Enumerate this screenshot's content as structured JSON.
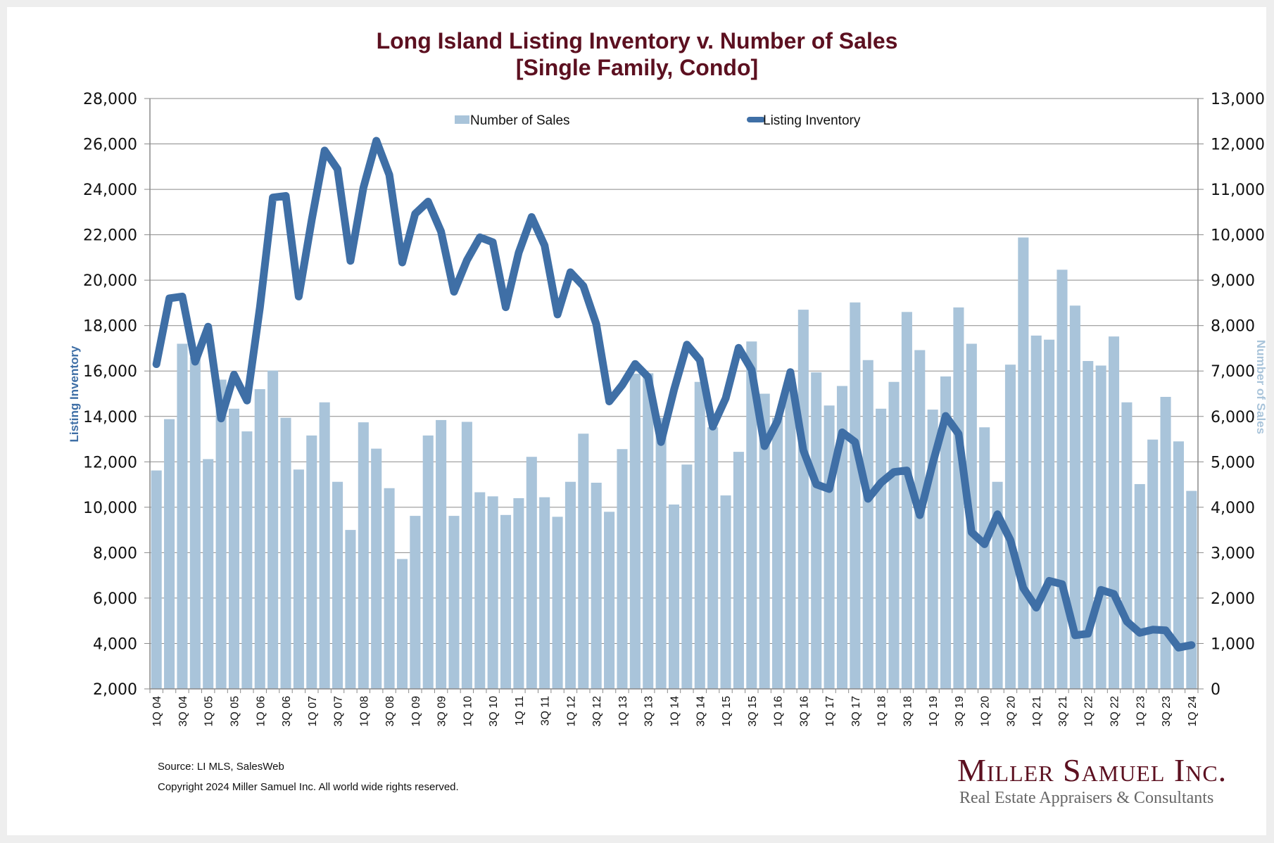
{
  "title_line1": "Long Island Listing Inventory v. Number of Sales",
  "title_line2": "[Single Family, Condo]",
  "source": "Source: LI MLS, SalesWeb",
  "copyright": "Copyright 2024 Miller Samuel Inc.  All world wide rights reserved.",
  "logo": {
    "name": "Miller Samuel Inc.",
    "tagline": "Real Estate Appraisers & Consultants",
    "color": "#5c1020"
  },
  "colors": {
    "sales_bar": "#a9c4da",
    "inventory_line": "#3f6fa6",
    "title": "#5c1020"
  },
  "chart_data": {
    "type": "bar",
    "title": "Long Island Listing Inventory v. Number of Sales [Single Family, Condo]",
    "xlabel": "",
    "ylabel_left": "Listing Inventory",
    "ylabel_right": "Number of Sales",
    "ylim_left": [
      2000,
      28000
    ],
    "ylim_right": [
      0,
      13000
    ],
    "yticks_left": [
      "2,000",
      "4,000",
      "6,000",
      "8,000",
      "10,000",
      "12,000",
      "14,000",
      "16,000",
      "18,000",
      "20,000",
      "22,000",
      "24,000",
      "26,000",
      "28,000"
    ],
    "yticks_right": [
      "0",
      "1,000",
      "2,000",
      "3,000",
      "4,000",
      "5,000",
      "6,000",
      "7,000",
      "8,000",
      "9,000",
      "10,000",
      "11,000",
      "12,000",
      "13,000"
    ],
    "grid": true,
    "legend": [
      "Number of Sales",
      "Listing Inventory"
    ],
    "legend_position": "top-center",
    "categories": [
      "1Q 04",
      "2Q 04",
      "3Q 04",
      "4Q 04",
      "1Q 05",
      "2Q 05",
      "3Q 05",
      "4Q 05",
      "1Q 06",
      "2Q 06",
      "3Q 06",
      "4Q 06",
      "1Q 07",
      "2Q 07",
      "3Q 07",
      "4Q 07",
      "1Q 08",
      "2Q 08",
      "3Q 08",
      "4Q 08",
      "1Q 09",
      "2Q 09",
      "3Q 09",
      "4Q 09",
      "1Q 10",
      "2Q 10",
      "3Q 10",
      "4Q 10",
      "1Q 11",
      "2Q 11",
      "3Q 11",
      "4Q 11",
      "1Q 12",
      "2Q 12",
      "3Q 12",
      "4Q 12",
      "1Q 13",
      "2Q 13",
      "3Q 13",
      "4Q 13",
      "1Q 14",
      "2Q 14",
      "3Q 14",
      "4Q 14",
      "1Q 15",
      "2Q 15",
      "3Q 15",
      "4Q 15",
      "1Q 16",
      "2Q 16",
      "3Q 16",
      "4Q 16",
      "1Q 17",
      "2Q 17",
      "3Q 17",
      "4Q 17",
      "1Q 18",
      "2Q 18",
      "3Q 18",
      "4Q 18",
      "1Q 19",
      "2Q 19",
      "3Q 19",
      "4Q 19",
      "1Q 20",
      "2Q 20",
      "3Q 20",
      "4Q 20",
      "1Q 21",
      "2Q 21",
      "3Q 21",
      "4Q 21",
      "1Q 22",
      "2Q 22",
      "3Q 22",
      "4Q 22",
      "1Q 23",
      "2Q 23",
      "3Q 23",
      "4Q 23",
      "1Q 24"
    ],
    "series": [
      {
        "name": "Number of Sales",
        "type": "bar",
        "axis": "right",
        "values": [
          4810,
          5940,
          7600,
          7300,
          5060,
          6810,
          6170,
          5670,
          6600,
          7010,
          5970,
          4830,
          5580,
          6310,
          4560,
          3500,
          5870,
          5290,
          4420,
          2860,
          3810,
          5580,
          5920,
          3810,
          5880,
          4330,
          4240,
          3830,
          4200,
          5110,
          4220,
          3790,
          4560,
          5620,
          4540,
          3900,
          5280,
          6940,
          6950,
          5970,
          4060,
          4940,
          6760,
          5760,
          4260,
          5220,
          7650,
          6500,
          5970,
          6830,
          8350,
          6970,
          6240,
          6670,
          8510,
          7240,
          6170,
          6760,
          8300,
          7460,
          6150,
          6880,
          8400,
          7600,
          5760,
          4560,
          7140,
          9940,
          7780,
          7690,
          9230,
          8440,
          7220,
          7120,
          7760,
          6310,
          4510,
          5490,
          6430,
          5450,
          4360
        ]
      },
      {
        "name": "Listing Inventory",
        "type": "line",
        "axis": "left",
        "values": [
          16300,
          19200,
          19280,
          16410,
          17950,
          13910,
          15840,
          14700,
          18810,
          23640,
          23710,
          19280,
          22640,
          25710,
          24890,
          20850,
          24070,
          26140,
          24640,
          20780,
          22920,
          23460,
          22140,
          19490,
          20880,
          21890,
          21670,
          18810,
          21210,
          22780,
          21530,
          18490,
          20350,
          19740,
          18060,
          14660,
          15380,
          16310,
          15730,
          12870,
          15160,
          17160,
          16480,
          13550,
          14800,
          17020,
          16060,
          12690,
          13800,
          15950,
          12510,
          11010,
          10800,
          13300,
          12870,
          10370,
          11080,
          11550,
          11620,
          9650,
          11940,
          14020,
          13230,
          8900,
          8370,
          9690,
          8550,
          6440,
          5580,
          6760,
          6610,
          4360,
          4430,
          6360,
          6180,
          4970,
          4470,
          4610,
          4580,
          3820,
          3930
        ]
      }
    ],
    "x_tick_labels_shown": [
      "1Q 04",
      "3Q 04",
      "1Q 05",
      "3Q 05",
      "1Q 06",
      "3Q 06",
      "1Q 07",
      "3Q 07",
      "1Q 08",
      "3Q 08",
      "1Q 09",
      "3Q 09",
      "1Q 10",
      "3Q 10",
      "1Q 11",
      "3Q 11",
      "1Q 12",
      "3Q 12",
      "1Q 13",
      "3Q 13",
      "1Q 14",
      "3Q 14",
      "1Q 15",
      "3Q 15",
      "1Q 16",
      "3Q 16",
      "1Q 17",
      "3Q 17",
      "1Q 18",
      "3Q 18",
      "1Q 19",
      "3Q 19",
      "1Q 20",
      "3Q 20",
      "1Q 21",
      "3Q 21",
      "1Q 22",
      "3Q 22",
      "1Q 23",
      "3Q 23",
      "1Q 24"
    ]
  }
}
